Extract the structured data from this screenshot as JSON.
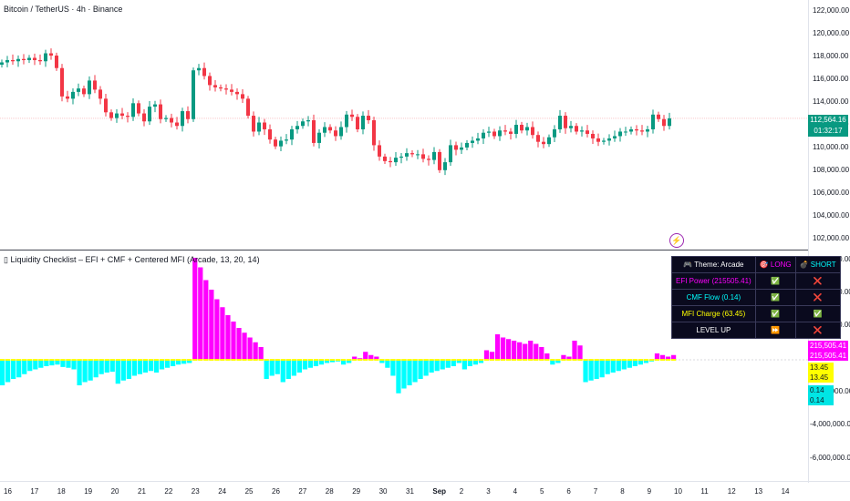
{
  "header": {
    "title": "Bitcoin / TetherUS · 4h · Binance"
  },
  "indicator": {
    "title": "▯ Liquidity Checklist – EFI + CMF + Centered MFI (Arcade, 13, 20, 14)"
  },
  "price_axis": {
    "labels": [
      "122,000.00",
      "120,000.00",
      "118,000.00",
      "116,000.00",
      "114,000.00",
      "112,000.00",
      "110,000.00",
      "108,000.00",
      "106,000.00",
      "104,000.00",
      "102,000.00"
    ]
  },
  "last_price": {
    "value": "112,564.16",
    "countdown": "01:32:17"
  },
  "indicator_axis": {
    "labels": [
      "6,000,000.00",
      "4,000,000.00",
      "2,000,000.00",
      "0,000.00",
      "-4,000,000.00",
      "-6,000,000.00"
    ]
  },
  "indicator_tags": [
    "215,505.41",
    "215,505.41",
    "13.45",
    "13.45",
    "0.14",
    "0.14"
  ],
  "time_axis": {
    "labels": [
      "16",
      "17",
      "18",
      "19",
      "20",
      "21",
      "22",
      "23",
      "24",
      "25",
      "26",
      "27",
      "28",
      "29",
      "30",
      "31",
      "Sep",
      "2",
      "3",
      "4",
      "5",
      "6",
      "7",
      "8",
      "9",
      "10",
      "11",
      "12",
      "13",
      "14"
    ]
  },
  "checklist": {
    "header": {
      "theme": "🎮 Theme: Arcade",
      "long": "🎯 LONG",
      "short": "💣 SHORT"
    },
    "rows": [
      {
        "label": "EFI Power (215505.41)",
        "long": "✅",
        "short": "❌",
        "color": "#ff00ff"
      },
      {
        "label": "CMF Flow (0.14)",
        "long": "✅",
        "short": "❌",
        "color": "#00ffff"
      },
      {
        "label": "MFI Charge (63.45)",
        "long": "✅",
        "short": "✅",
        "color": "#ffff00"
      },
      {
        "label": "LEVEL UP",
        "long": "⏩",
        "short": "❌",
        "color": "#ffffff"
      }
    ]
  },
  "colors": {
    "up": "#089981",
    "down": "#f23645",
    "efi_pos": "#ff00ff",
    "efi_neg": "#00ffff",
    "mfi": "#ffff00"
  },
  "chart_data": {
    "type": "candlestick",
    "title": "Bitcoin / TetherUS · 4h · Binance",
    "ylim": [
      101000,
      123000
    ],
    "close_series": [
      117500,
      117700,
      117600,
      117800,
      117700,
      117900,
      117700,
      117600,
      118300,
      118100,
      117000,
      114500,
      114300,
      114900,
      115200,
      114700,
      115900,
      115100,
      114300,
      113100,
      112600,
      113000,
      112800,
      112700,
      113900,
      113000,
      112300,
      113600,
      113800,
      112500,
      112600,
      112200,
      111900,
      113200,
      112500,
      116800,
      117000,
      116300,
      115500,
      115300,
      115200,
      115100,
      114900,
      114700,
      114300,
      112800,
      111400,
      112200,
      111600,
      110700,
      110100,
      110600,
      110700,
      111600,
      111900,
      112300,
      112400,
      110400,
      111300,
      111800,
      111500,
      111000,
      111800,
      112900,
      112700,
      111600,
      112800,
      112400,
      110200,
      109200,
      108800,
      108700,
      109100,
      109200,
      109500,
      109400,
      109400,
      109000,
      108900,
      109600,
      108000,
      108700,
      110200,
      109800,
      110000,
      110400,
      110600,
      110800,
      111300,
      111400,
      111000,
      111500,
      111400,
      111200,
      112000,
      111500,
      111800,
      111100,
      110500,
      110300,
      110900,
      111600,
      112800,
      111700,
      111900,
      111400,
      111500,
      111200,
      110800,
      110500,
      110600,
      110800,
      111000,
      111400,
      111400,
      111600,
      111500,
      111400,
      111600,
      112900,
      112500,
      111900,
      112564
    ],
    "efi_histogram": [
      -1.6,
      -1.4,
      -1.2,
      -1.1,
      -0.9,
      -0.7,
      -0.6,
      -0.5,
      -0.4,
      -0.35,
      -0.3,
      -0.45,
      -0.5,
      -0.6,
      -1.6,
      -1.4,
      -1.3,
      -1.1,
      -0.9,
      -0.8,
      -0.75,
      -1.5,
      -1.3,
      -1.2,
      -1.0,
      -0.9,
      -0.8,
      -0.7,
      -0.8,
      -0.6,
      -0.5,
      -0.4,
      -0.3,
      -0.25,
      -0.2,
      6.4,
      5.8,
      5.0,
      4.4,
      3.8,
      3.3,
      2.8,
      2.4,
      2.0,
      1.7,
      1.4,
      1.1,
      0.8,
      -1.2,
      -1.0,
      -0.9,
      -1.4,
      -1.2,
      -1.0,
      -0.8,
      -0.6,
      -0.5,
      -0.4,
      -0.3,
      -0.2,
      -0.15,
      -0.1,
      -0.3,
      -0.2,
      0.2,
      0.1,
      0.5,
      0.3,
      0.2,
      -0.2,
      -0.5,
      -1.0,
      -2.1,
      -1.8,
      -1.6,
      -1.4,
      -1.2,
      -1.0,
      -0.8,
      -0.7,
      -0.6,
      -0.5,
      -0.4,
      -0.2,
      -0.6,
      -0.4,
      -0.3,
      -0.2,
      0.6,
      0.5,
      1.6,
      1.4,
      1.3,
      1.2,
      1.1,
      1.0,
      1.2,
      1.0,
      0.8,
      0.4,
      -0.3,
      -0.2,
      0.3,
      0.2,
      1.2,
      0.9,
      -1.4,
      -1.3,
      -1.2,
      -1.1,
      -0.9,
      -0.8,
      -0.7,
      -0.6,
      -0.5,
      -0.4,
      -0.3,
      -0.2,
      -0.1,
      0.4,
      0.3,
      0.2,
      0.3
    ]
  }
}
